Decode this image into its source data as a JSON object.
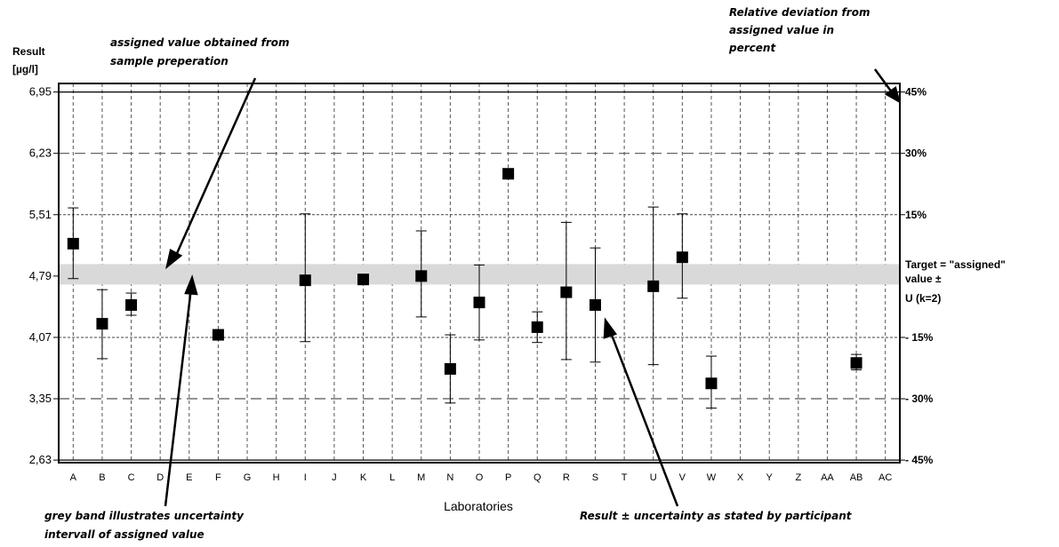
{
  "chart_data": {
    "type": "scatter",
    "title": "",
    "ylabel": [
      "Result",
      "[µg/l]"
    ],
    "xlabel": "Laboratories",
    "ylim": [
      2.6,
      7.05
    ],
    "y_ticks": [
      "6,95",
      "6,23",
      "5,51",
      "4,79",
      "4,07",
      "3,35",
      "2,63"
    ],
    "y_tick_values": [
      6.95,
      6.23,
      5.51,
      4.79,
      4.07,
      3.35,
      2.63
    ],
    "right_ticks": [
      "45%",
      "30%",
      "15%",
      "- 15%",
      "- 30%",
      "- 45%"
    ],
    "right_tick_values": [
      6.95,
      6.23,
      5.51,
      4.07,
      3.35,
      2.63
    ],
    "right_axis_title": [
      "Relative deviation from",
      "assigned value in",
      "percent"
    ],
    "assigned_value": 4.79,
    "uncertainty_band": [
      4.69,
      4.93
    ],
    "band_color": "#d9d9d9",
    "target_label": [
      "Target = \"assigned\"",
      "value ±",
      "U (k=2)"
    ],
    "categories": [
      "A",
      "B",
      "C",
      "D",
      "E",
      "F",
      "G",
      "H",
      "I",
      "J",
      "K",
      "L",
      "M",
      "N",
      "O",
      "P",
      "Q",
      "R",
      "S",
      "T",
      "U",
      "V",
      "W",
      "X",
      "Y",
      "Z",
      "AA",
      "AB",
      "AC"
    ],
    "points": [
      {
        "lab": "A",
        "value": 5.17,
        "low": 4.76,
        "high": 5.59
      },
      {
        "lab": "B",
        "value": 4.23,
        "low": 3.82,
        "high": 4.63
      },
      {
        "lab": "C",
        "value": 4.45,
        "low": 4.33,
        "high": 4.59
      },
      {
        "lab": "F",
        "value": 4.1
      },
      {
        "lab": "I",
        "value": 4.74,
        "low": 4.02,
        "high": 5.52
      },
      {
        "lab": "K",
        "value": 4.75
      },
      {
        "lab": "M",
        "value": 4.79,
        "low": 4.31,
        "high": 5.32
      },
      {
        "lab": "N",
        "value": 3.7,
        "low": 3.3,
        "high": 4.1
      },
      {
        "lab": "O",
        "value": 4.48,
        "low": 4.04,
        "high": 4.92
      },
      {
        "lab": "P",
        "value": 5.99
      },
      {
        "lab": "Q",
        "value": 4.19,
        "low": 4.01,
        "high": 4.37
      },
      {
        "lab": "R",
        "value": 4.6,
        "low": 3.81,
        "high": 5.42
      },
      {
        "lab": "S",
        "value": 4.45,
        "low": 3.78,
        "high": 5.12
      },
      {
        "lab": "U",
        "value": 4.67,
        "low": 3.75,
        "high": 5.6
      },
      {
        "lab": "V",
        "value": 5.01,
        "low": 4.53,
        "high": 5.52
      },
      {
        "lab": "W",
        "value": 3.53,
        "low": 3.24,
        "high": 3.85
      },
      {
        "lab": "AB",
        "value": 3.77,
        "low": 3.69,
        "high": 3.87
      }
    ],
    "marker_color": "#000000",
    "grid": true
  },
  "annotations": {
    "assigned_note": [
      "assigned value obtained from",
      "sample preperation"
    ],
    "band_note": [
      "grey band illustrates uncertainty",
      "intervall of assigned value"
    ],
    "result_note": "Result ± uncertainty as stated by participant"
  }
}
